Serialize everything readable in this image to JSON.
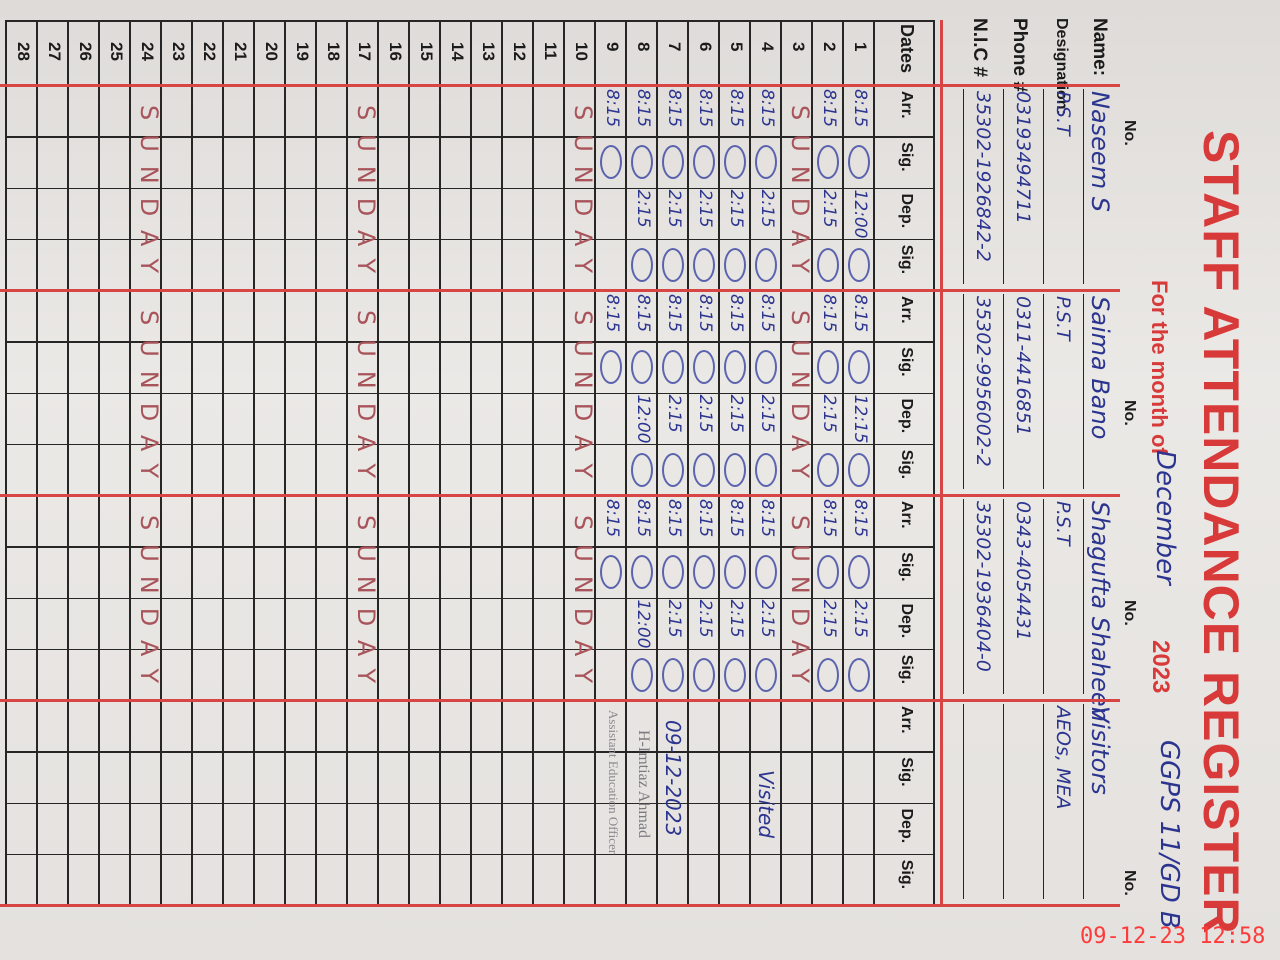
{
  "header": {
    "title": "STAFF ATTENDANCE REGISTER",
    "month_label": "For the month of",
    "month": "December",
    "year": "2023",
    "school": "GGPS 11/GD B",
    "no_label": "No."
  },
  "labels": {
    "name": "Name:",
    "designation": "Designation:",
    "phone": "Phone #",
    "nic": "N.I.C #",
    "dates": "Dates",
    "arr": "Arr.",
    "sig": "Sig.",
    "dep": "Dep."
  },
  "staff": [
    {
      "name": "Naseem S",
      "designation": "P.S.T",
      "phone": "03193494711",
      "nic": "35302-1926842-2"
    },
    {
      "name": "Saima Bano",
      "designation": "P.S.T",
      "phone": "0311-4416851",
      "nic": "35302-9956002-2"
    },
    {
      "name": "Shagufta Shaheen",
      "designation": "P.S.T",
      "phone": "0343-4054431",
      "nic": "35302-1936404-0"
    },
    {
      "name": "Visitors",
      "designation": "AEOs, MEA"
    }
  ],
  "rows": [
    {
      "date": "1",
      "entries": [
        {
          "arr": "8:15",
          "dep": "12:00"
        },
        {
          "arr": "8:15",
          "dep": "12:15"
        },
        {
          "arr": "8:15",
          "dep": "2:15"
        }
      ]
    },
    {
      "date": "2",
      "entries": [
        {
          "arr": "8:15",
          "dep": "2:15"
        },
        {
          "arr": "8:15",
          "dep": "2:15"
        },
        {
          "arr": "8:15",
          "dep": "2:15"
        }
      ]
    },
    {
      "date": "3",
      "note": "SUNDAY"
    },
    {
      "date": "4",
      "entries": [
        {
          "arr": "8:15",
          "dep": "2:15"
        },
        {
          "arr": "8:15",
          "dep": "2:15"
        },
        {
          "arr": "8:15",
          "dep": "2:15"
        }
      ]
    },
    {
      "date": "5",
      "entries": [
        {
          "arr": "8:15",
          "dep": "2:15"
        },
        {
          "arr": "8:15",
          "dep": "2:15"
        },
        {
          "arr": "8:15",
          "dep": "2:15"
        }
      ]
    },
    {
      "date": "6",
      "entries": [
        {
          "arr": "8:15",
          "dep": "2:15"
        },
        {
          "arr": "8:15",
          "dep": "2:15"
        },
        {
          "arr": "8:15",
          "dep": "2:15"
        }
      ]
    },
    {
      "date": "7",
      "entries": [
        {
          "arr": "8:15",
          "dep": "2:15"
        },
        {
          "arr": "8:15",
          "dep": "2:15"
        },
        {
          "arr": "8:15",
          "dep": "2:15"
        }
      ]
    },
    {
      "date": "8",
      "entries": [
        {
          "arr": "8:15",
          "dep": "2:15"
        },
        {
          "arr": "8:15",
          "dep": "12:00"
        },
        {
          "arr": "8:15",
          "dep": "12:00"
        }
      ]
    },
    {
      "date": "9",
      "entries": [
        {
          "arr": "8:15"
        },
        {
          "arr": "8:15"
        },
        {
          "arr": "8:15"
        }
      ]
    },
    {
      "date": "10",
      "note": "SUNDAY"
    },
    {
      "date": "11"
    },
    {
      "date": "12"
    },
    {
      "date": "13"
    },
    {
      "date": "14"
    },
    {
      "date": "15"
    },
    {
      "date": "16"
    },
    {
      "date": "17",
      "note": "SUNDAY"
    },
    {
      "date": "18"
    },
    {
      "date": "19"
    },
    {
      "date": "20"
    },
    {
      "date": "21"
    },
    {
      "date": "22"
    },
    {
      "date": "23"
    },
    {
      "date": "24",
      "note": "SUNDAY"
    },
    {
      "date": "25"
    },
    {
      "date": "26"
    },
    {
      "date": "27"
    },
    {
      "date": "28"
    }
  ],
  "visitor_note": {
    "text": "Visited",
    "date": "09-12-2023",
    "stamp_name": "H-Imtiaz Ahmad",
    "stamp_title": "Assistant Education Officer"
  },
  "timestamp": "09-12-23  12:58"
}
